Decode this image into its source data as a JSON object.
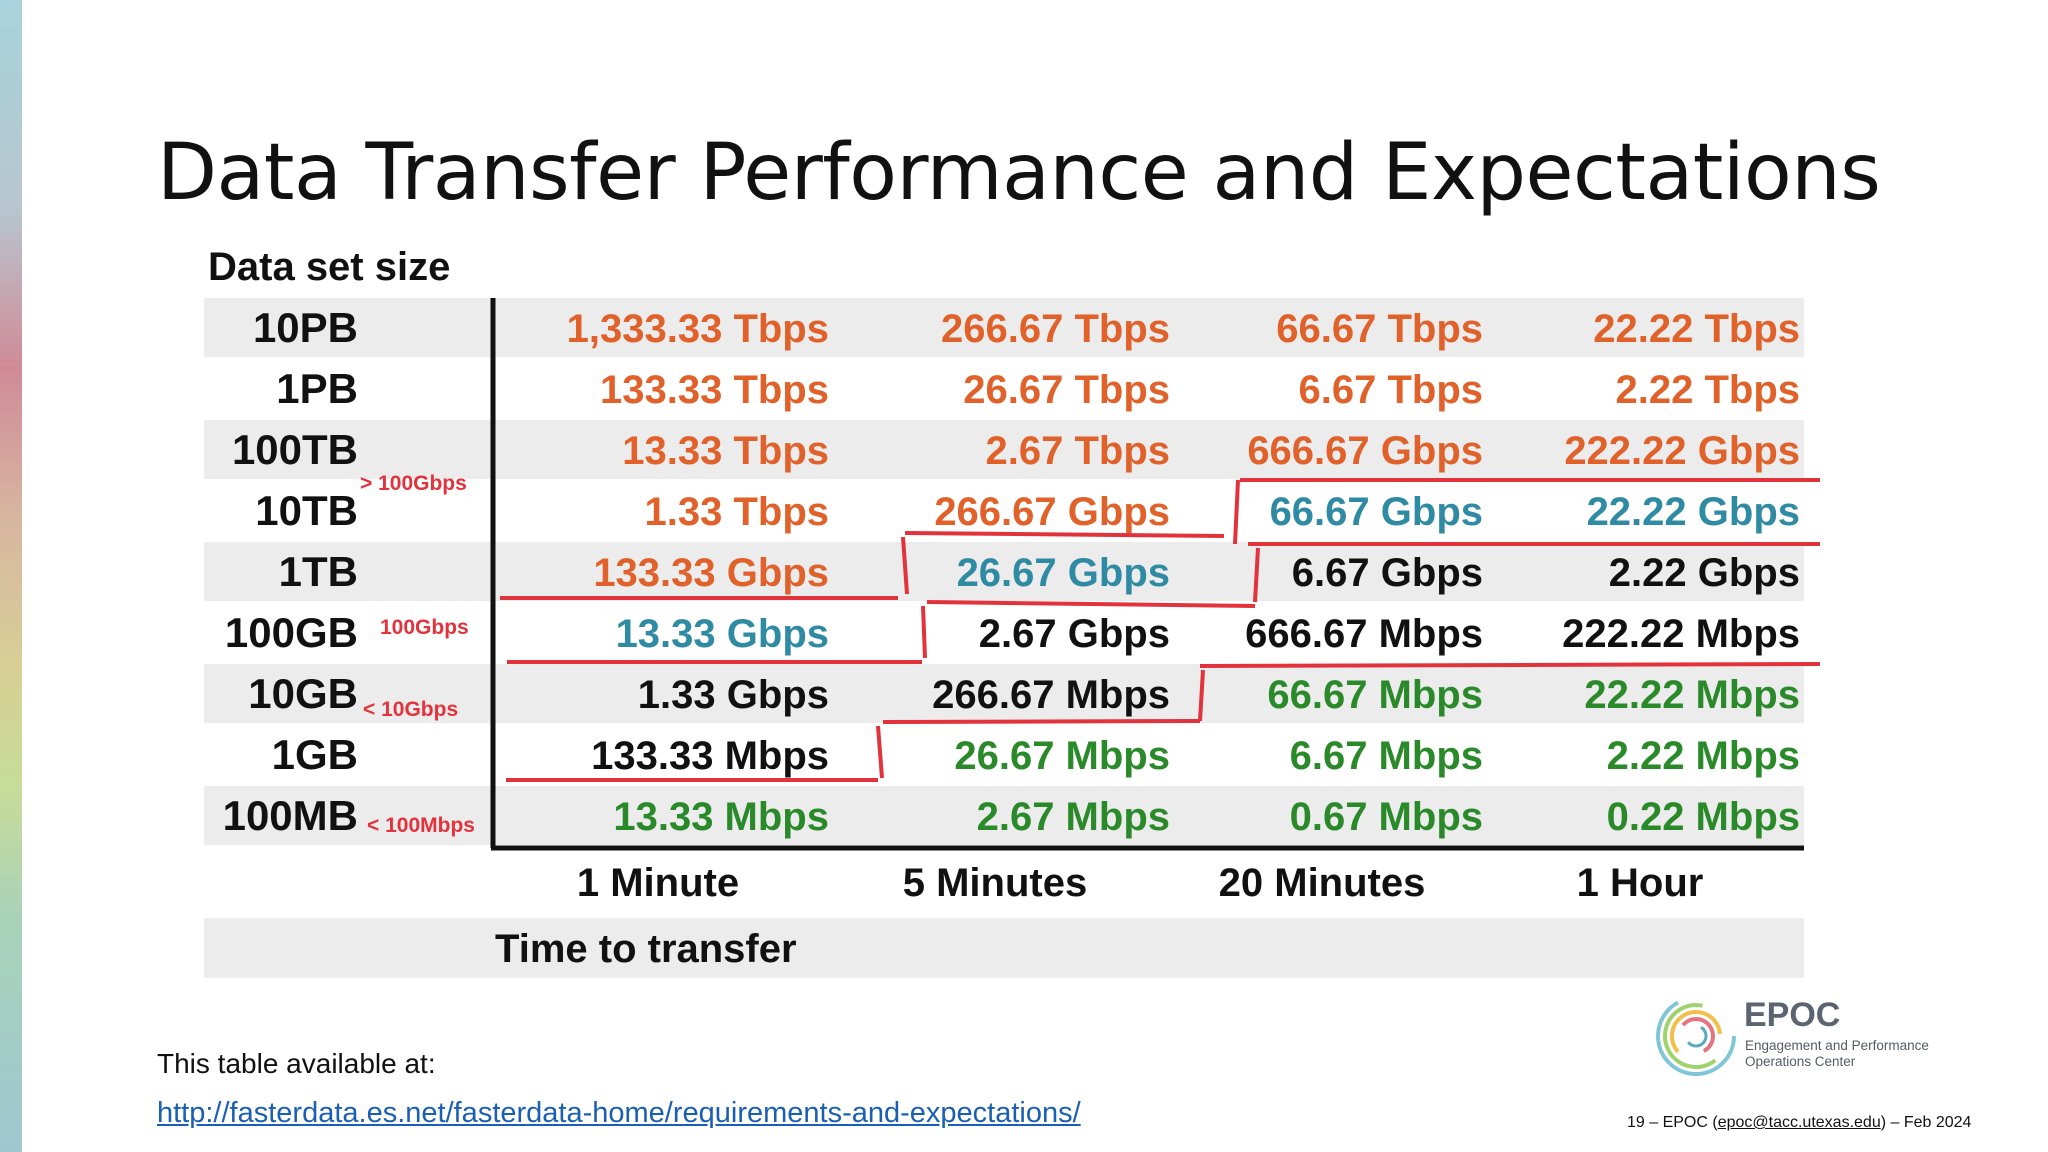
{
  "slide": {
    "title": "Data Transfer Performance and Expectations",
    "note": "This table available at:",
    "link": "http://fasterdata.es.net/fasterdata-home/requirements-and-expectations/",
    "footer": {
      "prefix": "19 – EPOC (",
      "email": "epoc@tacc.utexas.edu",
      "suffix": ") – Feb 2024"
    },
    "logo": {
      "name": "EPOC",
      "tagline": "Engagement and Performance Operations Center"
    }
  },
  "table": {
    "row_header": "Data set size",
    "col_header": "Time to transfer",
    "columns": [
      "1 Minute",
      "5 Minutes",
      "20 Minutes",
      "1 Hour"
    ],
    "rows": [
      {
        "size": "10PB",
        "cells": [
          [
            "1,333.33 Tbps",
            "orange"
          ],
          [
            "266.67 Tbps",
            "orange"
          ],
          [
            "66.67 Tbps",
            "orange"
          ],
          [
            "22.22 Tbps",
            "orange"
          ]
        ]
      },
      {
        "size": "1PB",
        "cells": [
          [
            "133.33 Tbps",
            "orange"
          ],
          [
            "26.67 Tbps",
            "orange"
          ],
          [
            "6.67 Tbps",
            "orange"
          ],
          [
            "2.22 Tbps",
            "orange"
          ]
        ]
      },
      {
        "size": "100TB",
        "cells": [
          [
            "13.33 Tbps",
            "orange"
          ],
          [
            "2.67 Tbps",
            "orange"
          ],
          [
            "666.67 Gbps",
            "orange"
          ],
          [
            "222.22 Gbps",
            "orange"
          ]
        ]
      },
      {
        "size": "10TB",
        "cells": [
          [
            "1.33 Tbps",
            "orange"
          ],
          [
            "266.67 Gbps",
            "orange"
          ],
          [
            "66.67 Gbps",
            "blue"
          ],
          [
            "22.22 Gbps",
            "blue"
          ]
        ]
      },
      {
        "size": "1TB",
        "cells": [
          [
            "133.33 Gbps",
            "orange"
          ],
          [
            "26.67 Gbps",
            "blue"
          ],
          [
            "6.67 Gbps",
            "black"
          ],
          [
            "2.22 Gbps",
            "black"
          ]
        ]
      },
      {
        "size": "100GB",
        "cells": [
          [
            "13.33 Gbps",
            "blue"
          ],
          [
            "2.67 Gbps",
            "black"
          ],
          [
            "666.67 Mbps",
            "black"
          ],
          [
            "222.22 Mbps",
            "black"
          ]
        ]
      },
      {
        "size": "10GB",
        "cells": [
          [
            "1.33 Gbps",
            "black"
          ],
          [
            "266.67 Mbps",
            "black"
          ],
          [
            "66.67 Mbps",
            "green"
          ],
          [
            "22.22 Mbps",
            "green"
          ]
        ]
      },
      {
        "size": "1GB",
        "cells": [
          [
            "133.33 Mbps",
            "black"
          ],
          [
            "26.67 Mbps",
            "green"
          ],
          [
            "6.67 Mbps",
            "green"
          ],
          [
            "2.22 Mbps",
            "green"
          ]
        ]
      },
      {
        "size": "100MB",
        "cells": [
          [
            "13.33 Mbps",
            "green"
          ],
          [
            "2.67 Mbps",
            "green"
          ],
          [
            "0.67 Mbps",
            "green"
          ],
          [
            "0.22 Mbps",
            "green"
          ]
        ]
      }
    ],
    "tier_labels": [
      "> 100Gbps",
      "100Gbps",
      "< 10Gbps",
      "< 100Mbps"
    ],
    "colors": {
      "orange": "#e0612a",
      "blue": "#2f8aa3",
      "black": "#111111",
      "green": "#2a8a2a",
      "red": "#e2333c",
      "stripe": "#ececec"
    }
  }
}
